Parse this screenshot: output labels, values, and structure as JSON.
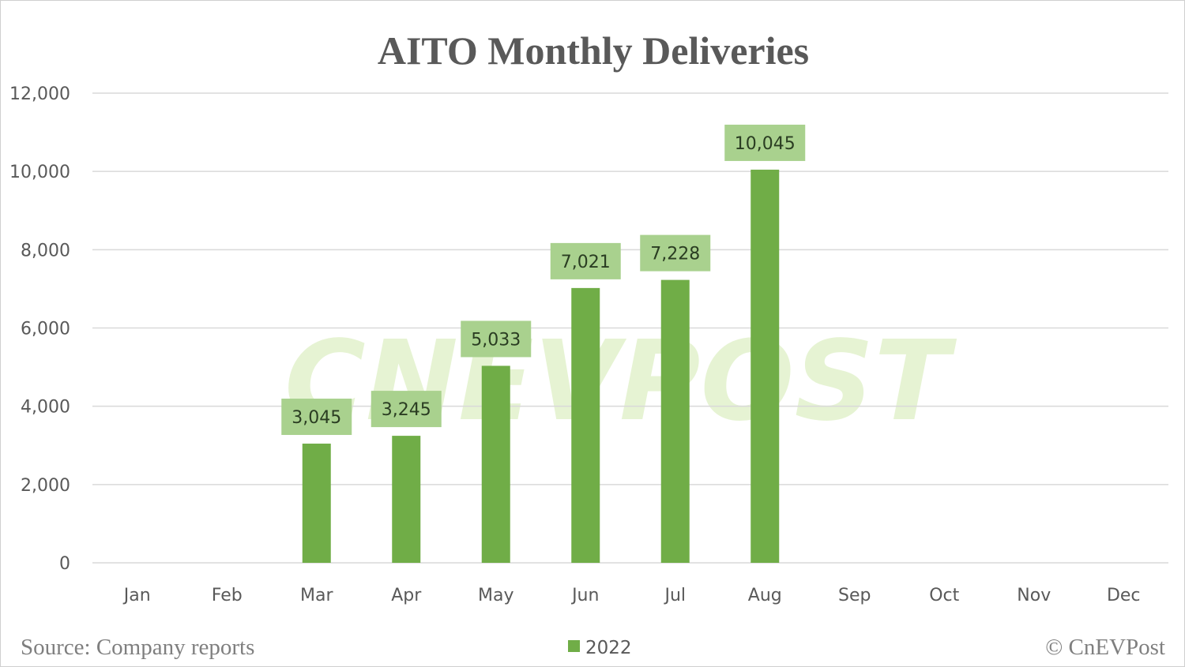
{
  "chart_data": {
    "type": "bar",
    "title": "AITO Monthly Deliveries",
    "categories": [
      "Jan",
      "Feb",
      "Mar",
      "Apr",
      "May",
      "Jun",
      "Jul",
      "Aug",
      "Sep",
      "Oct",
      "Nov",
      "Dec"
    ],
    "series": [
      {
        "name": "2022",
        "values": [
          null,
          null,
          3045,
          3245,
          5033,
          7021,
          7228,
          10045,
          null,
          null,
          null,
          null
        ]
      }
    ],
    "data_labels": [
      "",
      "",
      "3,045",
      "3,245",
      "5,033",
      "7,021",
      "7,228",
      "10,045",
      "",
      "",
      "",
      ""
    ],
    "ylim": [
      0,
      12000
    ],
    "yticks": [
      0,
      2000,
      4000,
      6000,
      8000,
      10000,
      12000
    ],
    "ytick_labels": [
      "0",
      "2,000",
      "4,000",
      "6,000",
      "8,000",
      "10,000",
      "12,000"
    ],
    "xlabel": "",
    "ylabel": "",
    "grid": true,
    "legend_placement": "bottom",
    "colors": {
      "bar": "#70ad47",
      "label_box": "#a9d18e",
      "grid": "#d9d9d9"
    }
  },
  "footer": {
    "source": "Source: Company reports",
    "credit": "© CnEVPost"
  },
  "watermark": "CNEVPOST"
}
